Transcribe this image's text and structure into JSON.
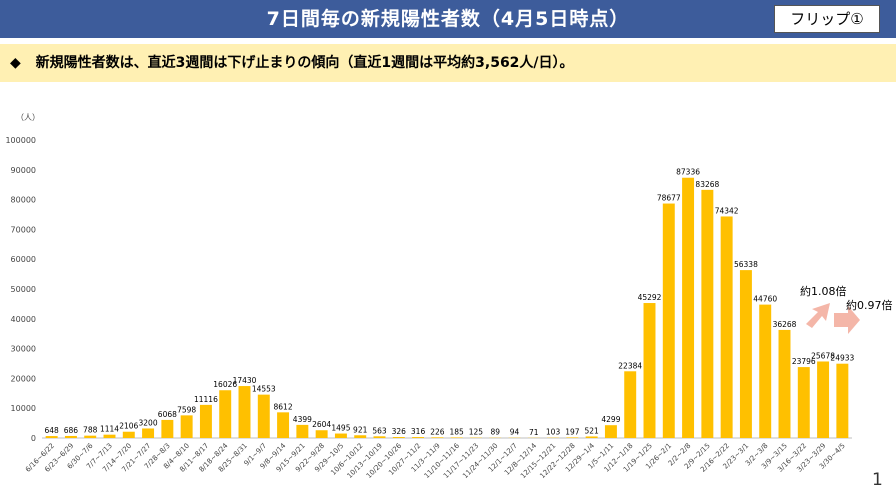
{
  "header": {
    "title": "7日間毎の新規陽性者数（4月5日時点）",
    "flip_label": "フリップ①"
  },
  "headline": {
    "marker": "◆",
    "text": "新規陽性者数は、直近3週間は下げ止まりの傾向（直近1週間は平均約3,562人/日）。"
  },
  "annotations": {
    "ratio_1": "約1.08倍",
    "ratio_2": "約0.97倍"
  },
  "page_number": "1",
  "colors": {
    "bar": "#ffc000",
    "title_bg": "#3d5c9b",
    "headline_bg": "#fff0b3",
    "arrow": "#f4b6a8"
  },
  "chart_data": {
    "type": "bar",
    "ylabel": "（人）",
    "ylim": [
      0,
      100000
    ],
    "yticks": [
      0,
      10000,
      20000,
      30000,
      40000,
      50000,
      60000,
      70000,
      80000,
      90000,
      100000
    ],
    "grid": false,
    "categories": [
      "6/16~6/22",
      "6/23~6/29",
      "6/30~7/6",
      "7/7~7/13",
      "7/14~7/20",
      "7/21~7/27",
      "7/28~8/3",
      "8/4~8/10",
      "8/11~8/17",
      "8/18~8/24",
      "8/25~8/31",
      "9/1~9/7",
      "9/8~9/14",
      "9/15~9/21",
      "9/22~9/28",
      "9/29~10/5",
      "10/6~10/12",
      "10/13~10/19",
      "10/20~10/26",
      "10/27~11/2",
      "11/3~11/9",
      "11/10~11/16",
      "11/17~11/23",
      "11/24~11/30",
      "12/1~12/7",
      "12/8~12/14",
      "12/15~12/21",
      "12/22~12/28",
      "12/29~1/4",
      "1/5~1/11",
      "1/12~1/18",
      "1/19~1/25",
      "1/26~2/1",
      "2/2~2/8",
      "2/9~2/15",
      "2/16~2/22",
      "2/23~3/1",
      "3/2~3/8",
      "3/9~3/15",
      "3/16~3/22",
      "3/23~3/29",
      "3/30~4/5"
    ],
    "values": [
      648,
      686,
      788,
      1114,
      2106,
      3200,
      6068,
      7598,
      11116,
      16026,
      17430,
      14553,
      8612,
      4399,
      2604,
      1495,
      921,
      563,
      326,
      316,
      226,
      185,
      125,
      89,
      94,
      71,
      103,
      197,
      521,
      4299,
      22384,
      45292,
      78677,
      87336,
      83268,
      74342,
      56338,
      44760,
      36268,
      23796,
      25678,
      24933
    ]
  }
}
